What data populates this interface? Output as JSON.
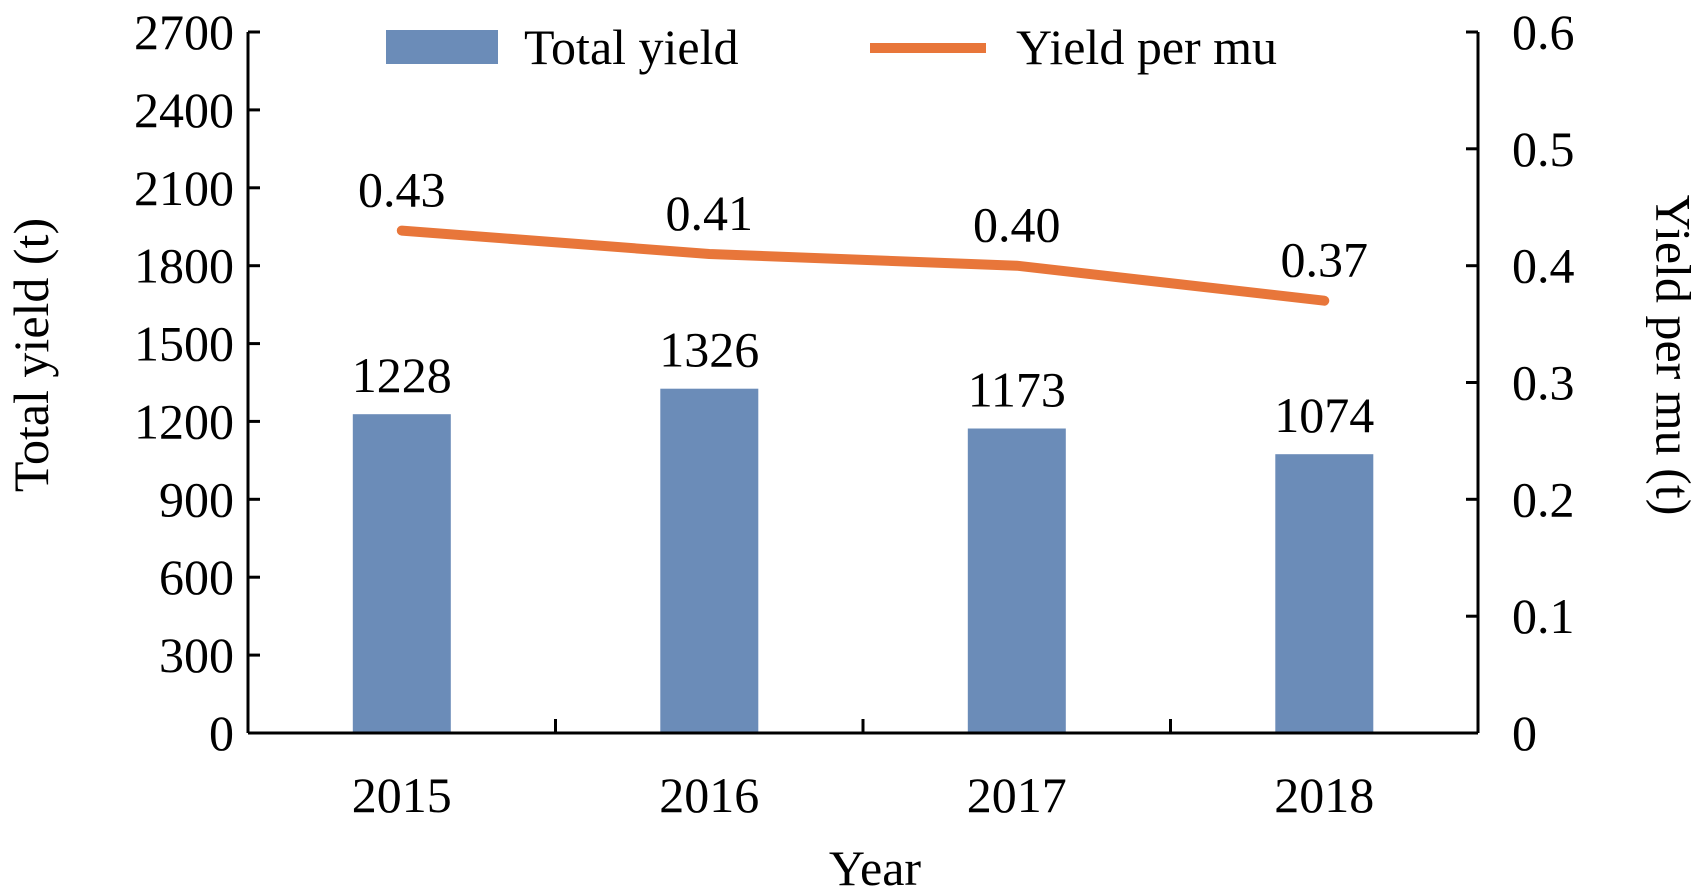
{
  "chart_data": {
    "type": "bar",
    "categories": [
      "2015",
      "2016",
      "2017",
      "2018"
    ],
    "series": [
      {
        "name": "Total yield",
        "kind": "bar",
        "axis": "left",
        "color": "#6b8cb8",
        "values": [
          1228,
          1326,
          1173,
          1074
        ],
        "labels": [
          "1228",
          "1326",
          "1173",
          "1074"
        ]
      },
      {
        "name": "Yield per mu",
        "kind": "line",
        "axis": "right",
        "color": "#e8763a",
        "values": [
          0.43,
          0.41,
          0.4,
          0.37
        ],
        "labels": [
          "0.43",
          "0.41",
          "0.40",
          "0.37"
        ]
      }
    ],
    "xlabel": "Year",
    "ylabel": "Total yield (t)",
    "ylabel_right": "Yield per mu (t)",
    "ylim": [
      0,
      2700
    ],
    "ylim_right": [
      0,
      0.6
    ],
    "yticks": [
      "0",
      "300",
      "600",
      "900",
      "1200",
      "1500",
      "1800",
      "2100",
      "2400",
      "2700"
    ],
    "yticks_right": [
      "0",
      "0.1",
      "0.2",
      "0.3",
      "0.4",
      "0.5",
      "0.6"
    ],
    "legend_position": "top",
    "grid": false
  }
}
